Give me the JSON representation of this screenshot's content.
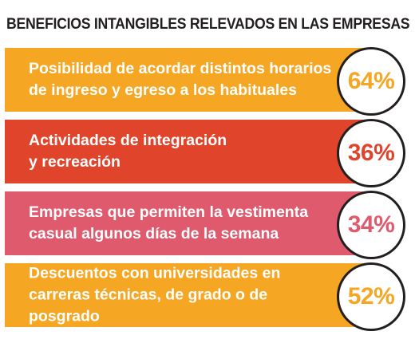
{
  "chart_data": {
    "type": "bar",
    "title": "BENEFICIOS INTANGIBLES RELEVADOS EN LAS EMPRESAS",
    "categories": [
      "Posibilidad de acordar distintos horarios\nde ingreso y egreso a los habituales",
      "Actividades de integración\ny recreación",
      "Empresas que permiten la vestimenta\ncasual algunos días de la semana",
      "Descuentos con universidades en\ncarreras técnicas, de grado o de posgrado"
    ],
    "values": [
      64,
      36,
      34,
      52
    ],
    "value_labels": [
      "64%",
      "36%",
      "34%",
      "52%"
    ],
    "colors": [
      "#f5a623",
      "#e0452b",
      "#e05a6e",
      "#f5a623"
    ],
    "border_color": "#231f20"
  }
}
